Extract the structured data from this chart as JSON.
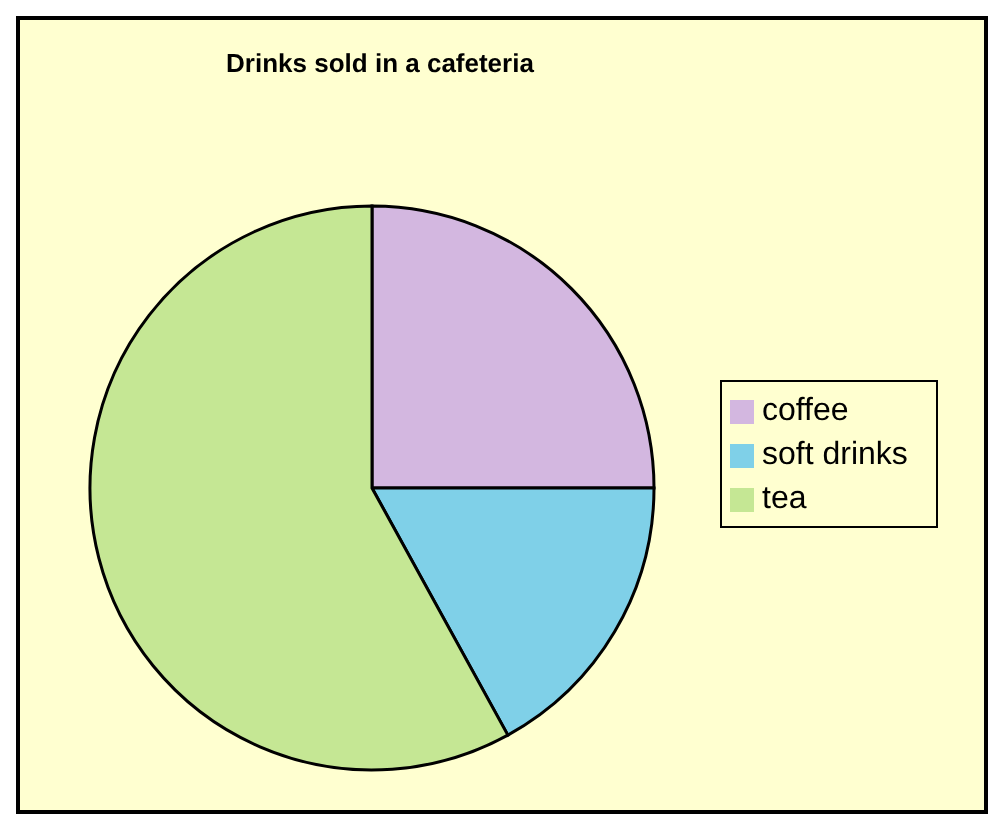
{
  "chart_data": {
    "type": "pie",
    "title": "Drinks sold in a cafeteria",
    "categories": [
      "coffee",
      "soft drinks",
      "tea"
    ],
    "values": [
      25,
      17,
      58
    ],
    "colors": [
      "#d3b7e0",
      "#7fd0e8",
      "#c5e794"
    ],
    "legend": "right"
  }
}
